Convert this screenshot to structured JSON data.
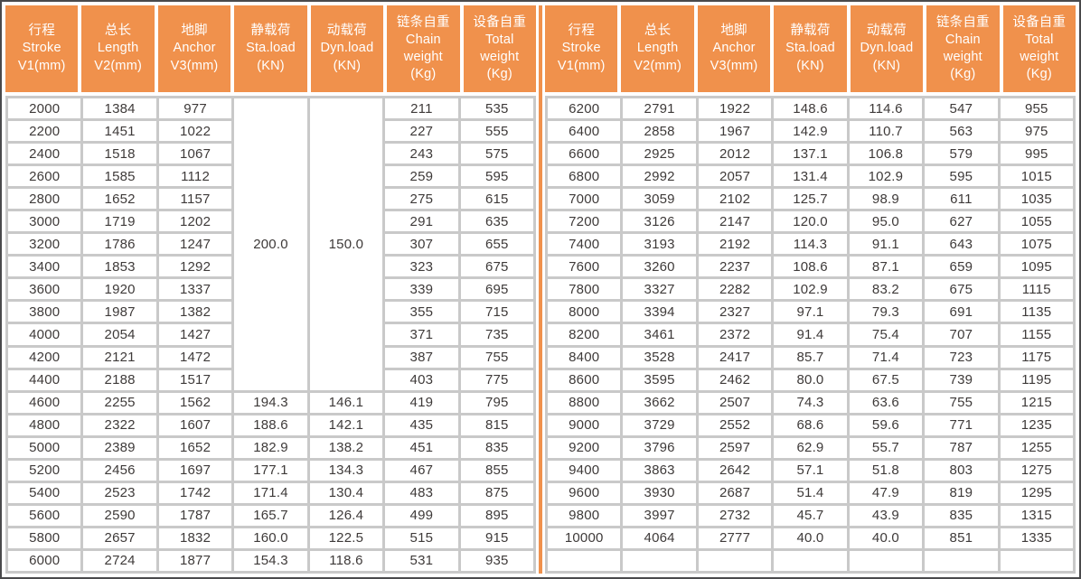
{
  "colors": {
    "header_orange": "#f0914c",
    "divider_orange": "#f0914c",
    "grid_gray": "#c9c9c9",
    "outer_border_dark": "#4a4a4c",
    "body_text": "#3e3a39",
    "header_text": "#ffffff"
  },
  "table": {
    "columns": [
      {
        "lines": [
          "行程",
          "Stroke",
          "V1(mm)"
        ]
      },
      {
        "lines": [
          "总长",
          "Length",
          "V2(mm)"
        ]
      },
      {
        "lines": [
          "地脚",
          "Anchor",
          "V3(mm)"
        ]
      },
      {
        "lines": [
          "静载荷",
          "Sta.load",
          "(KN)"
        ]
      },
      {
        "lines": [
          "动载荷",
          "Dyn.load",
          "(KN)"
        ]
      },
      {
        "lines": [
          "链条自重",
          "Chain",
          "weight",
          "(Kg)"
        ]
      },
      {
        "lines": [
          "设备自重",
          "Total",
          "weight",
          "(Kg)"
        ]
      }
    ],
    "left_half": {
      "merges": [
        {
          "row": 0,
          "col": 3,
          "span": 13,
          "value": "200.0"
        },
        {
          "row": 0,
          "col": 4,
          "span": 13,
          "value": "150.0"
        }
      ],
      "rows": [
        [
          "2000",
          "1384",
          "977",
          "",
          "",
          "211",
          "535"
        ],
        [
          "2200",
          "1451",
          "1022",
          "",
          "",
          "227",
          "555"
        ],
        [
          "2400",
          "1518",
          "1067",
          "",
          "",
          "243",
          "575"
        ],
        [
          "2600",
          "1585",
          "1112",
          "",
          "",
          "259",
          "595"
        ],
        [
          "2800",
          "1652",
          "1157",
          "",
          "",
          "275",
          "615"
        ],
        [
          "3000",
          "1719",
          "1202",
          "",
          "",
          "291",
          "635"
        ],
        [
          "3200",
          "1786",
          "1247",
          "",
          "",
          "307",
          "655"
        ],
        [
          "3400",
          "1853",
          "1292",
          "",
          "",
          "323",
          "675"
        ],
        [
          "3600",
          "1920",
          "1337",
          "",
          "",
          "339",
          "695"
        ],
        [
          "3800",
          "1987",
          "1382",
          "",
          "",
          "355",
          "715"
        ],
        [
          "4000",
          "2054",
          "1427",
          "",
          "",
          "371",
          "735"
        ],
        [
          "4200",
          "2121",
          "1472",
          "",
          "",
          "387",
          "755"
        ],
        [
          "4400",
          "2188",
          "1517",
          "",
          "",
          "403",
          "775"
        ],
        [
          "4600",
          "2255",
          "1562",
          "194.3",
          "146.1",
          "419",
          "795"
        ],
        [
          "4800",
          "2322",
          "1607",
          "188.6",
          "142.1",
          "435",
          "815"
        ],
        [
          "5000",
          "2389",
          "1652",
          "182.9",
          "138.2",
          "451",
          "835"
        ],
        [
          "5200",
          "2456",
          "1697",
          "177.1",
          "134.3",
          "467",
          "855"
        ],
        [
          "5400",
          "2523",
          "1742",
          "171.4",
          "130.4",
          "483",
          "875"
        ],
        [
          "5600",
          "2590",
          "1787",
          "165.7",
          "126.4",
          "499",
          "895"
        ],
        [
          "5800",
          "2657",
          "1832",
          "160.0",
          "122.5",
          "515",
          "915"
        ],
        [
          "6000",
          "2724",
          "1877",
          "154.3",
          "118.6",
          "531",
          "935"
        ]
      ]
    },
    "right_half": {
      "merges": [],
      "rows": [
        [
          "6200",
          "2791",
          "1922",
          "148.6",
          "114.6",
          "547",
          "955"
        ],
        [
          "6400",
          "2858",
          "1967",
          "142.9",
          "110.7",
          "563",
          "975"
        ],
        [
          "6600",
          "2925",
          "2012",
          "137.1",
          "106.8",
          "579",
          "995"
        ],
        [
          "6800",
          "2992",
          "2057",
          "131.4",
          "102.9",
          "595",
          "1015"
        ],
        [
          "7000",
          "3059",
          "2102",
          "125.7",
          "98.9",
          "611",
          "1035"
        ],
        [
          "7200",
          "3126",
          "2147",
          "120.0",
          "95.0",
          "627",
          "1055"
        ],
        [
          "7400",
          "3193",
          "2192",
          "114.3",
          "91.1",
          "643",
          "1075"
        ],
        [
          "7600",
          "3260",
          "2237",
          "108.6",
          "87.1",
          "659",
          "1095"
        ],
        [
          "7800",
          "3327",
          "2282",
          "102.9",
          "83.2",
          "675",
          "1115"
        ],
        [
          "8000",
          "3394",
          "2327",
          "97.1",
          "79.3",
          "691",
          "1135"
        ],
        [
          "8200",
          "3461",
          "2372",
          "91.4",
          "75.4",
          "707",
          "1155"
        ],
        [
          "8400",
          "3528",
          "2417",
          "85.7",
          "71.4",
          "723",
          "1175"
        ],
        [
          "8600",
          "3595",
          "2462",
          "80.0",
          "67.5",
          "739",
          "1195"
        ],
        [
          "8800",
          "3662",
          "2507",
          "74.3",
          "63.6",
          "755",
          "1215"
        ],
        [
          "9000",
          "3729",
          "2552",
          "68.6",
          "59.6",
          "771",
          "1235"
        ],
        [
          "9200",
          "3796",
          "2597",
          "62.9",
          "55.7",
          "787",
          "1255"
        ],
        [
          "9400",
          "3863",
          "2642",
          "57.1",
          "51.8",
          "803",
          "1275"
        ],
        [
          "9600",
          "3930",
          "2687",
          "51.4",
          "47.9",
          "819",
          "1295"
        ],
        [
          "9800",
          "3997",
          "2732",
          "45.7",
          "43.9",
          "835",
          "1315"
        ],
        [
          "10000",
          "4064",
          "2777",
          "40.0",
          "40.0",
          "851",
          "1335"
        ],
        [
          "",
          "",
          "",
          "",
          "",
          "",
          ""
        ]
      ]
    }
  }
}
